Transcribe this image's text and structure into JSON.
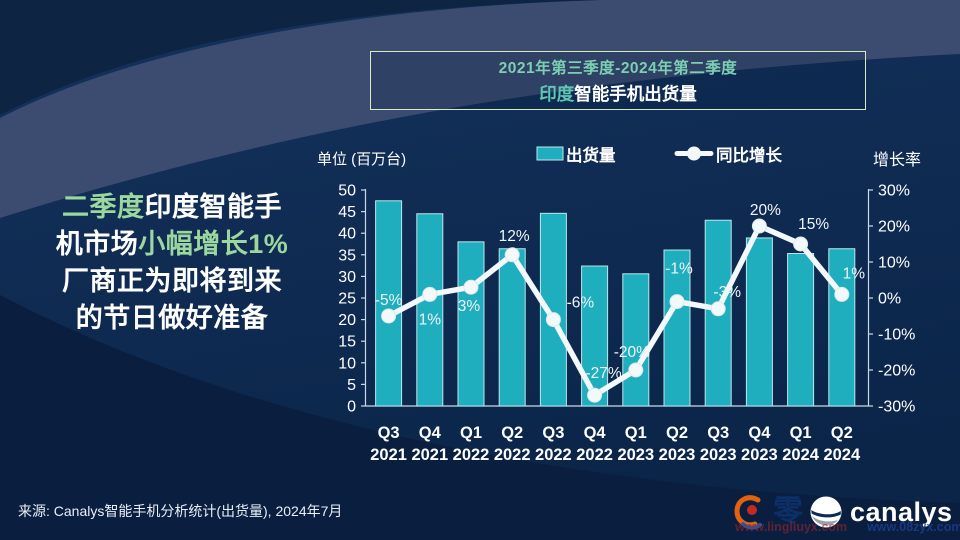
{
  "headline": {
    "lines": [
      {
        "segments": [
          {
            "text": "二季度",
            "highlight": true
          },
          {
            "text": "印度智能手",
            "highlight": false
          }
        ]
      },
      {
        "segments": [
          {
            "text": "机市场",
            "highlight": false
          },
          {
            "text": "小幅增长1%",
            "highlight": true
          }
        ]
      },
      {
        "segments": [
          {
            "text": "厂商正为即将到来",
            "highlight": false
          }
        ]
      },
      {
        "segments": [
          {
            "text": "的节日做好准备",
            "highlight": false
          }
        ]
      }
    ]
  },
  "title_box": {
    "period": "2021年第三季度-2024年第二季度",
    "subject_prefix": "印度",
    "subject_rest": "智能手机出货量"
  },
  "footer": {
    "source": "来源: Canalys智能手机分析统计(出货量), 2024年7月"
  },
  "branding": {
    "logo_text": "canalys",
    "watermark_char": "零",
    "watermark_urls": [
      "www.lingliuyx.com",
      "www.08zyx.com"
    ]
  },
  "colors": {
    "bar": "#1FAEBE",
    "bar_border": "#BCE7EC",
    "line": "#F3F8FA",
    "axis": "#C9D9E8",
    "tick_text": "#FFFFFF",
    "data_label": "#EFF6F8",
    "highlight_green": "#9BD79E"
  },
  "chart_data": {
    "type": "bar",
    "subtype": "bar+line combo",
    "title": "印度智能手机出货量 (2021年第三季度-2024年第二季度)",
    "categories": [
      {
        "quarter": "Q3",
        "year": "2021"
      },
      {
        "quarter": "Q4",
        "year": "2021"
      },
      {
        "quarter": "Q1",
        "year": "2022"
      },
      {
        "quarter": "Q2",
        "year": "2022"
      },
      {
        "quarter": "Q3",
        "year": "2022"
      },
      {
        "quarter": "Q4",
        "year": "2022"
      },
      {
        "quarter": "Q1",
        "year": "2023"
      },
      {
        "quarter": "Q2",
        "year": "2023"
      },
      {
        "quarter": "Q3",
        "year": "2023"
      },
      {
        "quarter": "Q4",
        "year": "2023"
      },
      {
        "quarter": "Q1",
        "year": "2024"
      },
      {
        "quarter": "Q2",
        "year": "2024"
      }
    ],
    "series": [
      {
        "name": "出货量",
        "type": "bar",
        "axis": "left",
        "values": [
          47.5,
          44.5,
          38.0,
          36.4,
          44.6,
          32.4,
          30.6,
          36.1,
          43.0,
          38.9,
          35.3,
          36.4
        ]
      },
      {
        "name": "同比增长",
        "type": "line",
        "axis": "right",
        "values": [
          -5,
          1,
          3,
          12,
          -6,
          -27,
          -20,
          -1,
          -3,
          20,
          15,
          1
        ],
        "labels": [
          "-5%",
          "1%",
          "3%",
          "12%",
          "-6%",
          "-27%",
          "-20%",
          "-1%",
          "-3%",
          "20%",
          "15%",
          "1%"
        ]
      }
    ],
    "left_axis": {
      "title": "单位 (百万台)",
      "min": 0,
      "max": 50,
      "step": 5
    },
    "right_axis": {
      "title": "增长率",
      "min": -30,
      "max": 30,
      "step": 10,
      "suffix": "%"
    },
    "legend_position": "top",
    "grid": false
  }
}
